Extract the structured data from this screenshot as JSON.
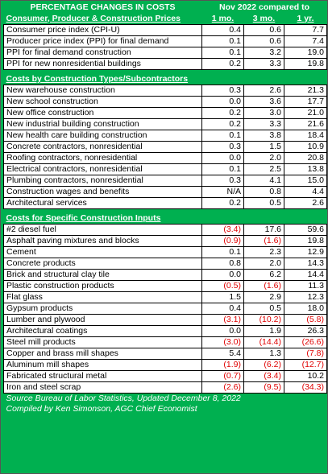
{
  "header": {
    "title": "PERCENTAGE CHANGES IN COSTS",
    "compare": "Nov 2022 compared to",
    "columns": [
      "1 mo.",
      "3 mo.",
      "1 yr."
    ]
  },
  "sections": [
    {
      "title": "Consumer, Producer & Construction Prices",
      "rows": [
        [
          "Consumer price index (CPI-U)",
          "0.4",
          "0.6",
          "7.7"
        ],
        [
          "Producer price index (PPI) for final demand",
          "0.1",
          "0.6",
          "7.4"
        ],
        [
          "PPI  for final demand construction",
          "0.1",
          "3.2",
          "19.0"
        ],
        [
          "PPI for new nonresidential buildings",
          "0.2",
          "3.3",
          "19.8"
        ]
      ]
    },
    {
      "title": "Costs by Construction Types/Subcontractors",
      "rows": [
        [
          "New warehouse construction",
          "0.3",
          "2.6",
          "21.3"
        ],
        [
          "New school construction",
          "0.0",
          "3.6",
          "17.7"
        ],
        [
          "New office construction",
          "0.2",
          "3.0",
          "21.0"
        ],
        [
          "New industrial building construction",
          "0.2",
          "3.3",
          "21.6"
        ],
        [
          "New health care building construction",
          "0.1",
          "3.8",
          "18.4"
        ],
        [
          "Concrete contractors, nonresidential",
          "0.3",
          "1.5",
          "10.9"
        ],
        [
          "Roofing contractors, nonresidential",
          "0.0",
          "2.0",
          "20.8"
        ],
        [
          "Electrical contractors, nonresidential",
          "0.1",
          "2.5",
          "13.8"
        ],
        [
          "Plumbing contractors, nonresidential",
          "0.3",
          "4.1",
          "15.0"
        ],
        [
          "Construction wages and benefits",
          "N/A",
          "0.8",
          "4.4"
        ],
        [
          "Architectural services",
          "0.2",
          "0.5",
          "2.6"
        ]
      ]
    },
    {
      "title": "Costs for Specific Construction Inputs",
      "rows": [
        [
          "#2 diesel fuel",
          "(3.4)",
          "17.6",
          "59.6"
        ],
        [
          "Asphalt paving mixtures and blocks",
          "(0.9)",
          "(1.6)",
          "19.8"
        ],
        [
          "Cement",
          "0.1",
          "2.3",
          "12.9"
        ],
        [
          "Concrete products",
          "0.8",
          "2.0",
          "14.3"
        ],
        [
          "Brick and structural clay tile",
          "0.0",
          "6.2",
          "14.4"
        ],
        [
          "Plastic construction products",
          "(0.5)",
          "(1.6)",
          "11.3"
        ],
        [
          "Flat glass",
          "1.5",
          "2.9",
          "12.3"
        ],
        [
          "Gypsum products",
          "0.4",
          "0.5",
          "18.0"
        ],
        [
          "Lumber and plywood",
          "(3.1)",
          "(10.2)",
          "(5.8)"
        ],
        [
          "Architectural coatings",
          "0.0",
          "1.9",
          "26.3"
        ],
        [
          "Steel mill products",
          "(3.0)",
          "(14.4)",
          "(26.6)"
        ],
        [
          "Copper and brass mill shapes",
          "5.4",
          "1.3",
          "(7.8)"
        ],
        [
          "Aluminum mill shapes",
          "(1.9)",
          "(6.2)",
          "(12.7)"
        ],
        [
          "Fabricated structural metal",
          "(0.7)",
          "(3.4)",
          "10.2"
        ],
        [
          "Iron and steel scrap",
          "(2.6)",
          "(9.5)",
          "(34.3)"
        ]
      ]
    }
  ],
  "footer": [
    "Source Bureau of Labor Statistics, Updated December 8, 2022",
    "Compiled by Ken Simonson, AGC Chief Economist"
  ]
}
